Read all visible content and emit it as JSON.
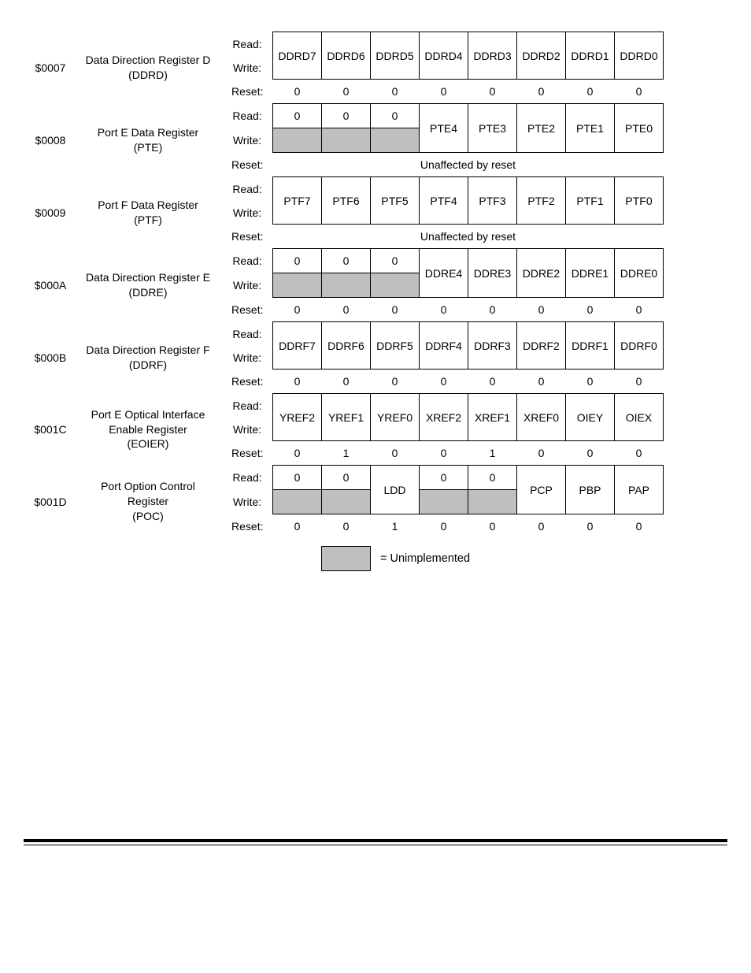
{
  "labels": {
    "read": "Read:",
    "write": "Write:",
    "reset": "Reset:"
  },
  "unimplemented_legend": "= Unimplemented",
  "colors": {
    "gray": "#bfbfbf",
    "border": "#000000",
    "bg": "#ffffff"
  },
  "registers": [
    {
      "addr": "$0007",
      "name_lines": [
        "Data Direction Register D",
        "(DDRD)"
      ],
      "type": "full",
      "bits": [
        "DDRD7",
        "DDRD6",
        "DDRD5",
        "DDRD4",
        "DDRD3",
        "DDRD2",
        "DDRD1",
        "DDRD0"
      ],
      "reset": [
        "0",
        "0",
        "0",
        "0",
        "0",
        "0",
        "0",
        "0"
      ]
    },
    {
      "addr": "$0008",
      "name_lines": [
        "Port E Data Register",
        "(PTE)"
      ],
      "type": "split3",
      "read_top": [
        "0",
        "0",
        "0"
      ],
      "right_bits": [
        "PTE4",
        "PTE3",
        "PTE2",
        "PTE1",
        "PTE0"
      ],
      "reset_mode": "unaffected",
      "reset_text": "Unaffected by reset"
    },
    {
      "addr": "$0009",
      "name_lines": [
        "Port F Data Register",
        "(PTF)"
      ],
      "type": "full",
      "bits": [
        "PTF7",
        "PTF6",
        "PTF5",
        "PTF4",
        "PTF3",
        "PTF2",
        "PTF1",
        "PTF0"
      ],
      "reset_mode": "unaffected",
      "reset_text": "Unaffected by reset"
    },
    {
      "addr": "$000A",
      "name_lines": [
        "Data Direction Register E",
        "(DDRE)"
      ],
      "type": "split3",
      "read_top": [
        "0",
        "0",
        "0"
      ],
      "right_bits": [
        "DDRE4",
        "DDRE3",
        "DDRE2",
        "DDRE1",
        "DDRE0"
      ],
      "reset": [
        "0",
        "0",
        "0",
        "0",
        "0",
        "0",
        "0",
        "0"
      ]
    },
    {
      "addr": "$000B",
      "name_lines": [
        "Data Direction Register F",
        "(DDRF)"
      ],
      "type": "full",
      "bits": [
        "DDRF7",
        "DDRF6",
        "DDRF5",
        "DDRF4",
        "DDRF3",
        "DDRF2",
        "DDRF1",
        "DDRF0"
      ],
      "reset": [
        "0",
        "0",
        "0",
        "0",
        "0",
        "0",
        "0",
        "0"
      ]
    },
    {
      "addr": "$001C",
      "name_lines": [
        "Port E Optical Interface",
        "Enable Register",
        "(EOIER)"
      ],
      "type": "full",
      "bits": [
        "YREF2",
        "YREF1",
        "YREF0",
        "XREF2",
        "XREF1",
        "XREF0",
        "OIEY",
        "OIEX"
      ],
      "reset": [
        "0",
        "1",
        "0",
        "0",
        "1",
        "0",
        "0",
        "0"
      ]
    },
    {
      "addr": "$001D",
      "name_lines": [
        "Port Option Control",
        "Register",
        "(POC)"
      ],
      "type": "poc",
      "read_vals": {
        "0": "0",
        "1": "0",
        "3": "0",
        "4": "0"
      },
      "merged": {
        "2": "LDD",
        "5": "PCP",
        "6": "PBP",
        "7": "PAP"
      },
      "reset": [
        "0",
        "0",
        "1",
        "0",
        "0",
        "0",
        "0",
        "0"
      ]
    }
  ]
}
